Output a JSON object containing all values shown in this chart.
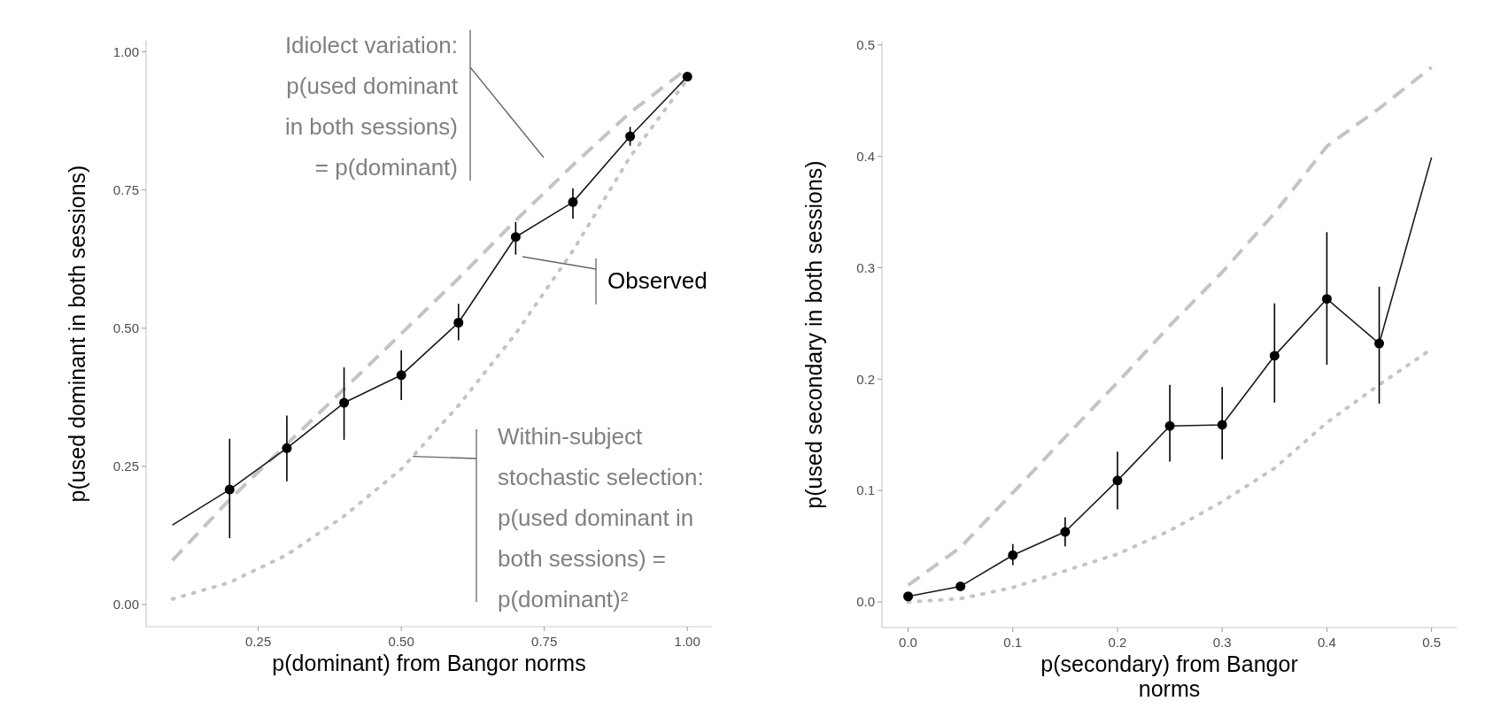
{
  "chart_data": [
    {
      "type": "line",
      "xlabel": "p(dominant) from Bangor norms",
      "ylabel": "p(used dominant in both sessions)",
      "xlim": [
        0.054,
        1.043
      ],
      "ylim": [
        -0.04,
        1.02
      ],
      "xticks": [
        0.25,
        {
          "value": 0.5,
          "label": "0.50"
        },
        0.75,
        {
          "value": 1,
          "label": "1.00"
        }
      ],
      "yticks": [
        {
          "value": 0,
          "label": "0.00"
        },
        0.25,
        {
          "value": 0.5,
          "label": "0.50"
        },
        0.75,
        {
          "value": 1,
          "label": "1.00"
        }
      ],
      "series": [
        {
          "type": "line",
          "color": "#c4c4c4",
          "line_style": "dashed",
          "marker": "none",
          "x": [
            0.1,
            0.2,
            0.3,
            0.4,
            0.5,
            0.6,
            0.7,
            0.8,
            0.9,
            1.0
          ],
          "values": [
            0.08,
            0.19,
            0.29,
            0.39,
            0.49,
            0.59,
            0.695,
            0.795,
            0.89,
            0.97
          ]
        },
        {
          "type": "line",
          "color": "#c4c4c4",
          "line_style": "dotted",
          "marker": "none",
          "x": [
            0.1,
            0.2,
            0.3,
            0.4,
            0.5,
            0.6,
            0.7,
            0.8,
            0.9,
            1.0
          ],
          "values": [
            0.01,
            0.04,
            0.09,
            0.16,
            0.245,
            0.36,
            0.49,
            0.64,
            0.81,
            0.95
          ]
        },
        {
          "color": "#1a1a1a",
          "line_style": "solid",
          "marker": "none",
          "x": [
            0.1,
            0.2,
            0.3,
            0.4,
            0.5,
            0.6,
            0.7,
            0.8,
            0.9,
            1.0
          ],
          "values": [
            0.144,
            0.208,
            0.283,
            0.365,
            0.415,
            0.51,
            0.665,
            0.728,
            0.847,
            0.955
          ]
        },
        {
          "type": "scatter",
          "color": "#000000",
          "marker": "circle",
          "x": [
            0.2,
            0.3,
            0.4,
            0.5,
            0.6,
            0.7,
            0.8,
            0.9,
            1.0
          ],
          "values": [
            0.208,
            0.283,
            0.365,
            0.415,
            0.51,
            0.665,
            0.728,
            0.847,
            0.955
          ],
          "errors": [
            [
              0.12,
              0.3
            ],
            [
              0.223,
              0.342
            ],
            [
              0.298,
              0.429
            ],
            [
              0.37,
              0.46
            ],
            [
              0.478,
              0.544
            ],
            [
              0.633,
              0.692
            ],
            [
              0.698,
              0.753
            ],
            [
              0.83,
              0.864
            ],
            null
          ]
        }
      ],
      "annotations": [
        "Idiolect variation:\np(used dominant\nin both sessions)\n= p(dominant)",
        "Observed",
        {
          "text": "Within-subject\nstochastic selection:\np(used dominant in\nboth sessions) =\np(dominant)²",
          "x": 0.52,
          "y": 0.268
        }
      ]
    },
    {
      "type": "line",
      "xlabel": "p(secondary) from Bangor\nnorms",
      "ylabel": "p(used secondary in both sessions)",
      "xlim": [
        -0.025,
        0.524
      ],
      "ylim": [
        -0.023,
        0.503
      ],
      "xticks": [
        {
          "value": 0,
          "label": "0.0"
        },
        0.1,
        0.2,
        0.3,
        0.4,
        0.5
      ],
      "yticks": [
        {
          "value": 0,
          "label": "0.0"
        },
        0.1,
        0.2,
        0.3,
        0.4,
        0.5
      ],
      "series": [
        {
          "type": "line",
          "color": "#c4c4c4",
          "line_style": "dashed",
          "marker": "none",
          "x": [
            0,
            0.05,
            0.1,
            0.15,
            0.2,
            0.25,
            0.3,
            0.35,
            0.4,
            0.45,
            0.5
          ],
          "values": [
            0.015,
            0.049,
            0.098,
            0.148,
            0.197,
            0.248,
            0.296,
            0.349,
            0.409,
            0.443,
            0.48
          ]
        },
        {
          "type": "line",
          "color": "#c4c4c4",
          "line_style": "dotted",
          "marker": "none",
          "x": [
            0,
            0.05,
            0.1,
            0.15,
            0.2,
            0.25,
            0.3,
            0.35,
            0.4,
            0.45,
            0.5
          ],
          "values": [
            0,
            0.003,
            0.013,
            0.028,
            0.043,
            0.064,
            0.09,
            0.12,
            0.161,
            0.195,
            0.227
          ]
        },
        {
          "color": "#1a1a1a",
          "line_style": "solid",
          "marker": "none",
          "x": [
            0,
            0.05,
            0.1,
            0.15,
            0.2,
            0.25,
            0.3,
            0.35,
            0.4,
            0.45,
            0.5
          ],
          "values": [
            0.005,
            0.014,
            0.042,
            0.063,
            0.109,
            0.158,
            0.159,
            0.221,
            0.272,
            0.232,
            0.399
          ]
        },
        {
          "type": "scatter",
          "color": "#000000",
          "marker": "circle",
          "x": [
            0,
            0.05,
            0.1,
            0.15,
            0.2,
            0.25,
            0.3,
            0.35,
            0.4,
            0.45
          ],
          "values": [
            0.005,
            0.014,
            0.042,
            0.063,
            0.109,
            0.158,
            0.159,
            0.221,
            0.272,
            0.232
          ],
          "errors": [
            null,
            null,
            [
              0.033,
              0.052
            ],
            [
              0.05,
              0.076
            ],
            [
              0.083,
              0.135
            ],
            [
              0.126,
              0.195
            ],
            [
              0.128,
              0.193
            ],
            [
              0.179,
              0.268
            ],
            [
              0.213,
              0.332
            ],
            [
              0.178,
              0.283
            ]
          ]
        }
      ]
    }
  ]
}
